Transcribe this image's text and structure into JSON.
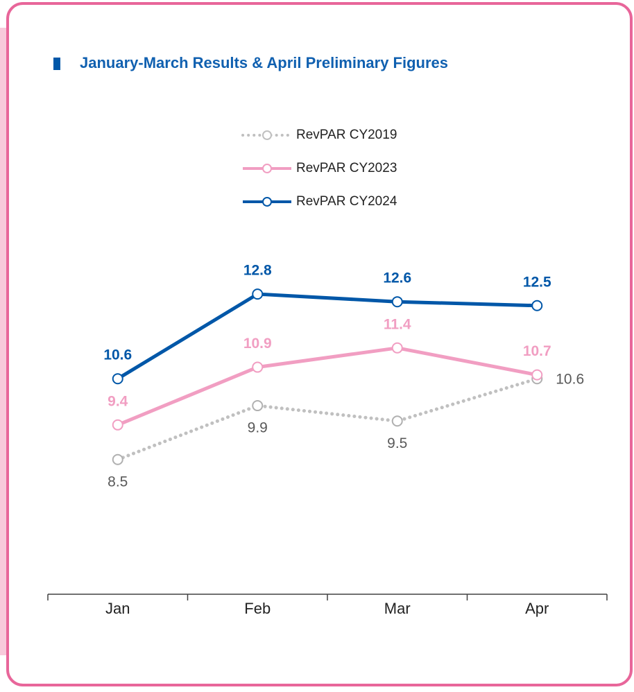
{
  "chart_data": {
    "type": "line",
    "title": "January-March Results & April Preliminary Figures",
    "categories": [
      "Jan",
      "Feb",
      "Mar",
      "Apr"
    ],
    "ylim": [
      5,
      14
    ],
    "series": [
      {
        "name": "RevPAR CY2019",
        "color": "#c0c0c0",
        "style": "dotted",
        "values": [
          8.5,
          9.9,
          9.5,
          10.6
        ]
      },
      {
        "name": "RevPAR CY2023",
        "color": "#f19ec2",
        "style": "solid",
        "values": [
          9.4,
          10.9,
          11.4,
          10.7
        ]
      },
      {
        "name": "RevPAR CY2024",
        "color": "#0057a8",
        "style": "solid",
        "values": [
          10.6,
          12.8,
          12.6,
          12.5
        ]
      }
    ]
  }
}
